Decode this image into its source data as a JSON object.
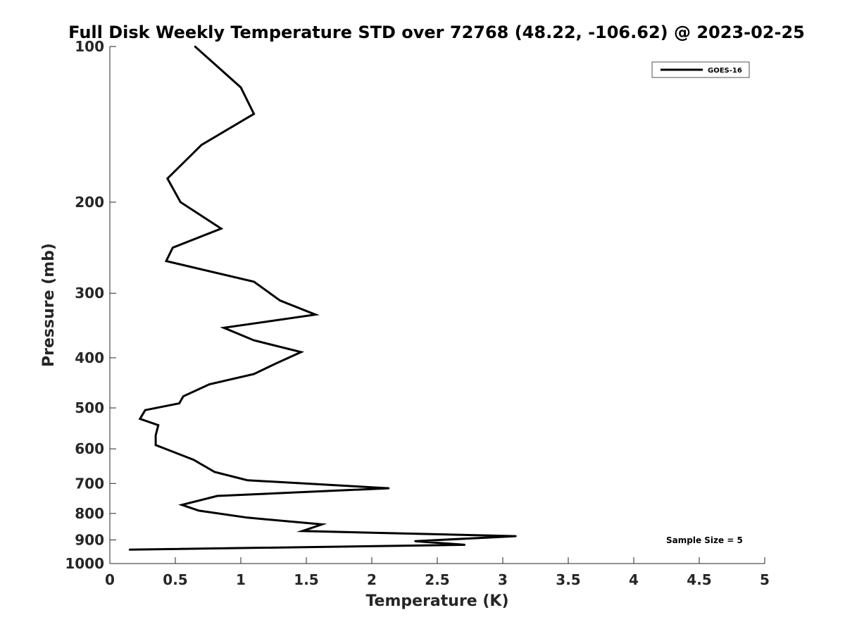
{
  "chart_data": {
    "type": "line",
    "title": "Full Disk Weekly Temperature STD over 72768 (48.22, -106.62) @ 2023-02-25",
    "xlabel": "Temperature (K)",
    "ylabel": "Pressure (mb)",
    "xlim": [
      0,
      5
    ],
    "ylim": [
      100,
      1000
    ],
    "y_scale": "log",
    "y_reversed": true,
    "x_ticks": [
      "0",
      "0.5",
      "1",
      "1.5",
      "2",
      "2.5",
      "3",
      "3.5",
      "4",
      "4.5",
      "5"
    ],
    "y_ticks": [
      "100",
      "200",
      "300",
      "400",
      "500",
      "600",
      "700",
      "800",
      "900",
      "1000"
    ],
    "grid": false,
    "legend": "top-right",
    "annotation": "Sample Size = 5",
    "series": [
      {
        "name": "GOES-16",
        "color": "#000000",
        "x": [
          0.65,
          1.0,
          1.1,
          0.7,
          0.44,
          0.54,
          0.85,
          0.48,
          0.43,
          1.1,
          1.3,
          1.57,
          0.87,
          1.1,
          1.46,
          1.27,
          1.1,
          0.76,
          0.56,
          0.53,
          0.27,
          0.23,
          0.37,
          0.35,
          0.35,
          0.64,
          0.8,
          1.05,
          2.13,
          0.82,
          0.55,
          0.68,
          1.05,
          1.62,
          1.47,
          3.1,
          2.33,
          2.71,
          0.15
        ],
        "y": [
          100,
          120,
          135,
          155,
          180,
          200,
          225,
          245,
          260,
          285,
          310,
          330,
          350,
          370,
          390,
          410,
          430,
          450,
          475,
          490,
          505,
          525,
          540,
          565,
          590,
          630,
          665,
          690,
          715,
          740,
          770,
          790,
          815,
          840,
          865,
          885,
          905,
          920,
          940
        ]
      }
    ]
  }
}
